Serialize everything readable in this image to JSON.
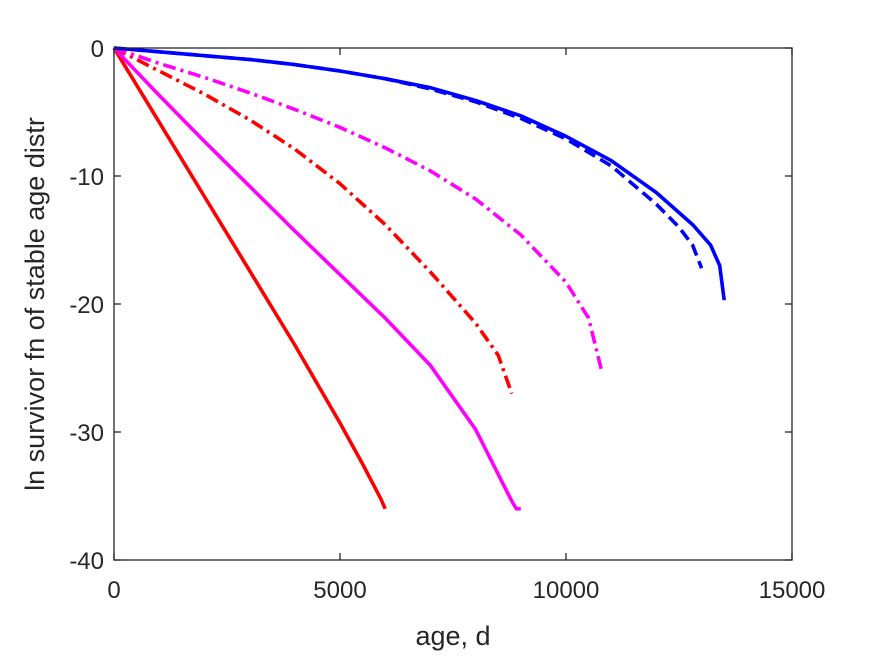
{
  "chart_data": {
    "type": "line",
    "title": "",
    "xlabel": "age, d",
    "ylabel": "ln survivor fn of stable age distr",
    "xlim": [
      0,
      15000
    ],
    "ylim": [
      -40,
      0
    ],
    "xticks": [
      0,
      5000,
      10000,
      15000
    ],
    "yticks": [
      -40,
      -30,
      -20,
      -10,
      0
    ],
    "xtick_labels": [
      "0",
      "5000",
      "10000",
      "15000"
    ],
    "ytick_labels": [
      "-40",
      "-30",
      "-20",
      "-10",
      "0"
    ],
    "grid": false,
    "legend": null,
    "series": [
      {
        "color": "#ff0000",
        "linestyle": "solid",
        "x": [
          0,
          1000,
          2000,
          3000,
          4000,
          5000,
          5500,
          5900,
          6000
        ],
        "y": [
          0,
          -5.8,
          -11.6,
          -17.4,
          -23.2,
          -29.3,
          -32.5,
          -35.2,
          -36.0
        ]
      },
      {
        "color": "#ff00ff",
        "linestyle": "solid",
        "x": [
          0,
          1000,
          2000,
          3000,
          4000,
          5000,
          6000,
          7000,
          8000,
          8600,
          8800,
          8900,
          9000
        ],
        "y": [
          0,
          -3.7,
          -7.3,
          -10.8,
          -14.3,
          -17.7,
          -21.1,
          -24.8,
          -29.8,
          -34.0,
          -35.4,
          -36.0,
          -36.0
        ]
      },
      {
        "color": "#ff0000",
        "linestyle": "dashdot",
        "x": [
          0,
          1000,
          2000,
          3000,
          4000,
          5000,
          6000,
          7000,
          8000,
          8500,
          8800
        ],
        "y": [
          0,
          -1.8,
          -3.6,
          -5.6,
          -7.9,
          -10.6,
          -13.8,
          -17.5,
          -21.5,
          -24.0,
          -27.0
        ]
      },
      {
        "color": "#ff00ff",
        "linestyle": "dashdot",
        "x": [
          0,
          1000,
          2000,
          3000,
          4000,
          5000,
          6000,
          7000,
          8000,
          9000,
          10000,
          10500,
          10800
        ],
        "y": [
          0,
          -1.2,
          -2.3,
          -3.5,
          -4.8,
          -6.2,
          -7.8,
          -9.6,
          -11.8,
          -14.6,
          -18.3,
          -21.1,
          -25.4
        ]
      },
      {
        "color": "#0000ff",
        "linestyle": "dashed",
        "x": [
          0,
          1000,
          2000,
          3000,
          4000,
          5000,
          6000,
          7000,
          8000,
          9000,
          10000,
          11000,
          12000,
          12500,
          12800,
          13000
        ],
        "y": [
          0,
          -0.3,
          -0.6,
          -0.9,
          -1.3,
          -1.8,
          -2.4,
          -3.2,
          -4.2,
          -5.5,
          -7.1,
          -9.2,
          -12.2,
          -14.0,
          -15.4,
          -17.2
        ]
      },
      {
        "color": "#0000ff",
        "linestyle": "solid",
        "x": [
          0,
          1000,
          2000,
          3000,
          4000,
          5000,
          6000,
          7000,
          8000,
          9000,
          10000,
          11000,
          12000,
          12800,
          13200,
          13400,
          13500
        ],
        "y": [
          0,
          -0.3,
          -0.6,
          -0.9,
          -1.3,
          -1.8,
          -2.4,
          -3.1,
          -4.1,
          -5.3,
          -6.9,
          -8.8,
          -11.3,
          -13.8,
          -15.4,
          -17.0,
          -19.7
        ]
      }
    ]
  }
}
